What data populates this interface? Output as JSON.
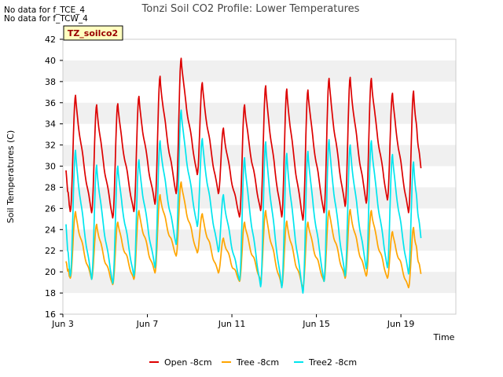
{
  "notes": [
    "No data for f_TCE_4",
    "No data for f_TCW_4"
  ],
  "site_badge": "TZ_soilco2",
  "chart_data": {
    "type": "line",
    "title": "Tonzi Soil CO2 Profile: Lower Temperatures",
    "xlabel": "Time",
    "ylabel": "Soil Temperatures (C)",
    "ylim": [
      16,
      42
    ],
    "yticks": [
      16,
      18,
      20,
      22,
      24,
      26,
      28,
      30,
      32,
      34,
      36,
      38,
      40,
      42
    ],
    "xlim_days": [
      3,
      21.6
    ],
    "xticks": [
      {
        "day": 3,
        "label": "Jun 3"
      },
      {
        "day": 7,
        "label": "Jun 7"
      },
      {
        "day": 11,
        "label": "Jun 11"
      },
      {
        "day": 15,
        "label": "Jun 15"
      },
      {
        "day": 19,
        "label": "Jun 19"
      }
    ],
    "grid": "alternating horizontal bands",
    "legend_position": "bottom",
    "series": [
      {
        "name": "Open -8cm",
        "color": "#dd0000",
        "max": [
          36.7,
          35.8,
          35.9,
          36.6,
          38.5,
          40.2,
          37.9,
          33.6,
          35.8,
          37.6,
          37.3,
          37.2,
          38.3,
          38.4,
          38.3,
          36.9,
          37.1
        ],
        "min": [
          25.7,
          25.6,
          25.1,
          25.7,
          26.4,
          27.4,
          29.2,
          27.4,
          25.2,
          25.8,
          25.2,
          24.9,
          25.6,
          26.2,
          26.5,
          26.8,
          25.6
        ],
        "start": 29.6,
        "end": 29.8
      },
      {
        "name": "Tree -8cm",
        "color": "#ffa500",
        "max": [
          25.7,
          24.5,
          24.7,
          25.8,
          27.3,
          28.5,
          25.5,
          23.2,
          24.7,
          25.8,
          24.8,
          24.7,
          25.8,
          25.9,
          25.8,
          23.8,
          24.2
        ],
        "min": [
          19.4,
          19.3,
          18.8,
          19.3,
          19.9,
          21.5,
          21.8,
          19.9,
          19.1,
          19.2,
          18.6,
          18.5,
          19.1,
          19.4,
          19.6,
          19.4,
          18.5
        ],
        "start": 21.0,
        "end": 19.8
      },
      {
        "name": "Tree2 -8cm",
        "color": "#00e5ee",
        "max": [
          31.5,
          30.1,
          30.0,
          30.6,
          32.4,
          35.3,
          32.6,
          27.3,
          30.8,
          32.3,
          31.2,
          31.4,
          32.5,
          32.0,
          32.4,
          31.1,
          30.4
        ],
        "min": [
          19.6,
          19.3,
          18.9,
          19.6,
          20.4,
          22.6,
          24.3,
          21.9,
          19.2,
          18.6,
          18.5,
          18.0,
          19.1,
          19.6,
          20.3,
          20.4,
          19.8
        ],
        "start": 24.5,
        "end": 23.2
      }
    ]
  }
}
